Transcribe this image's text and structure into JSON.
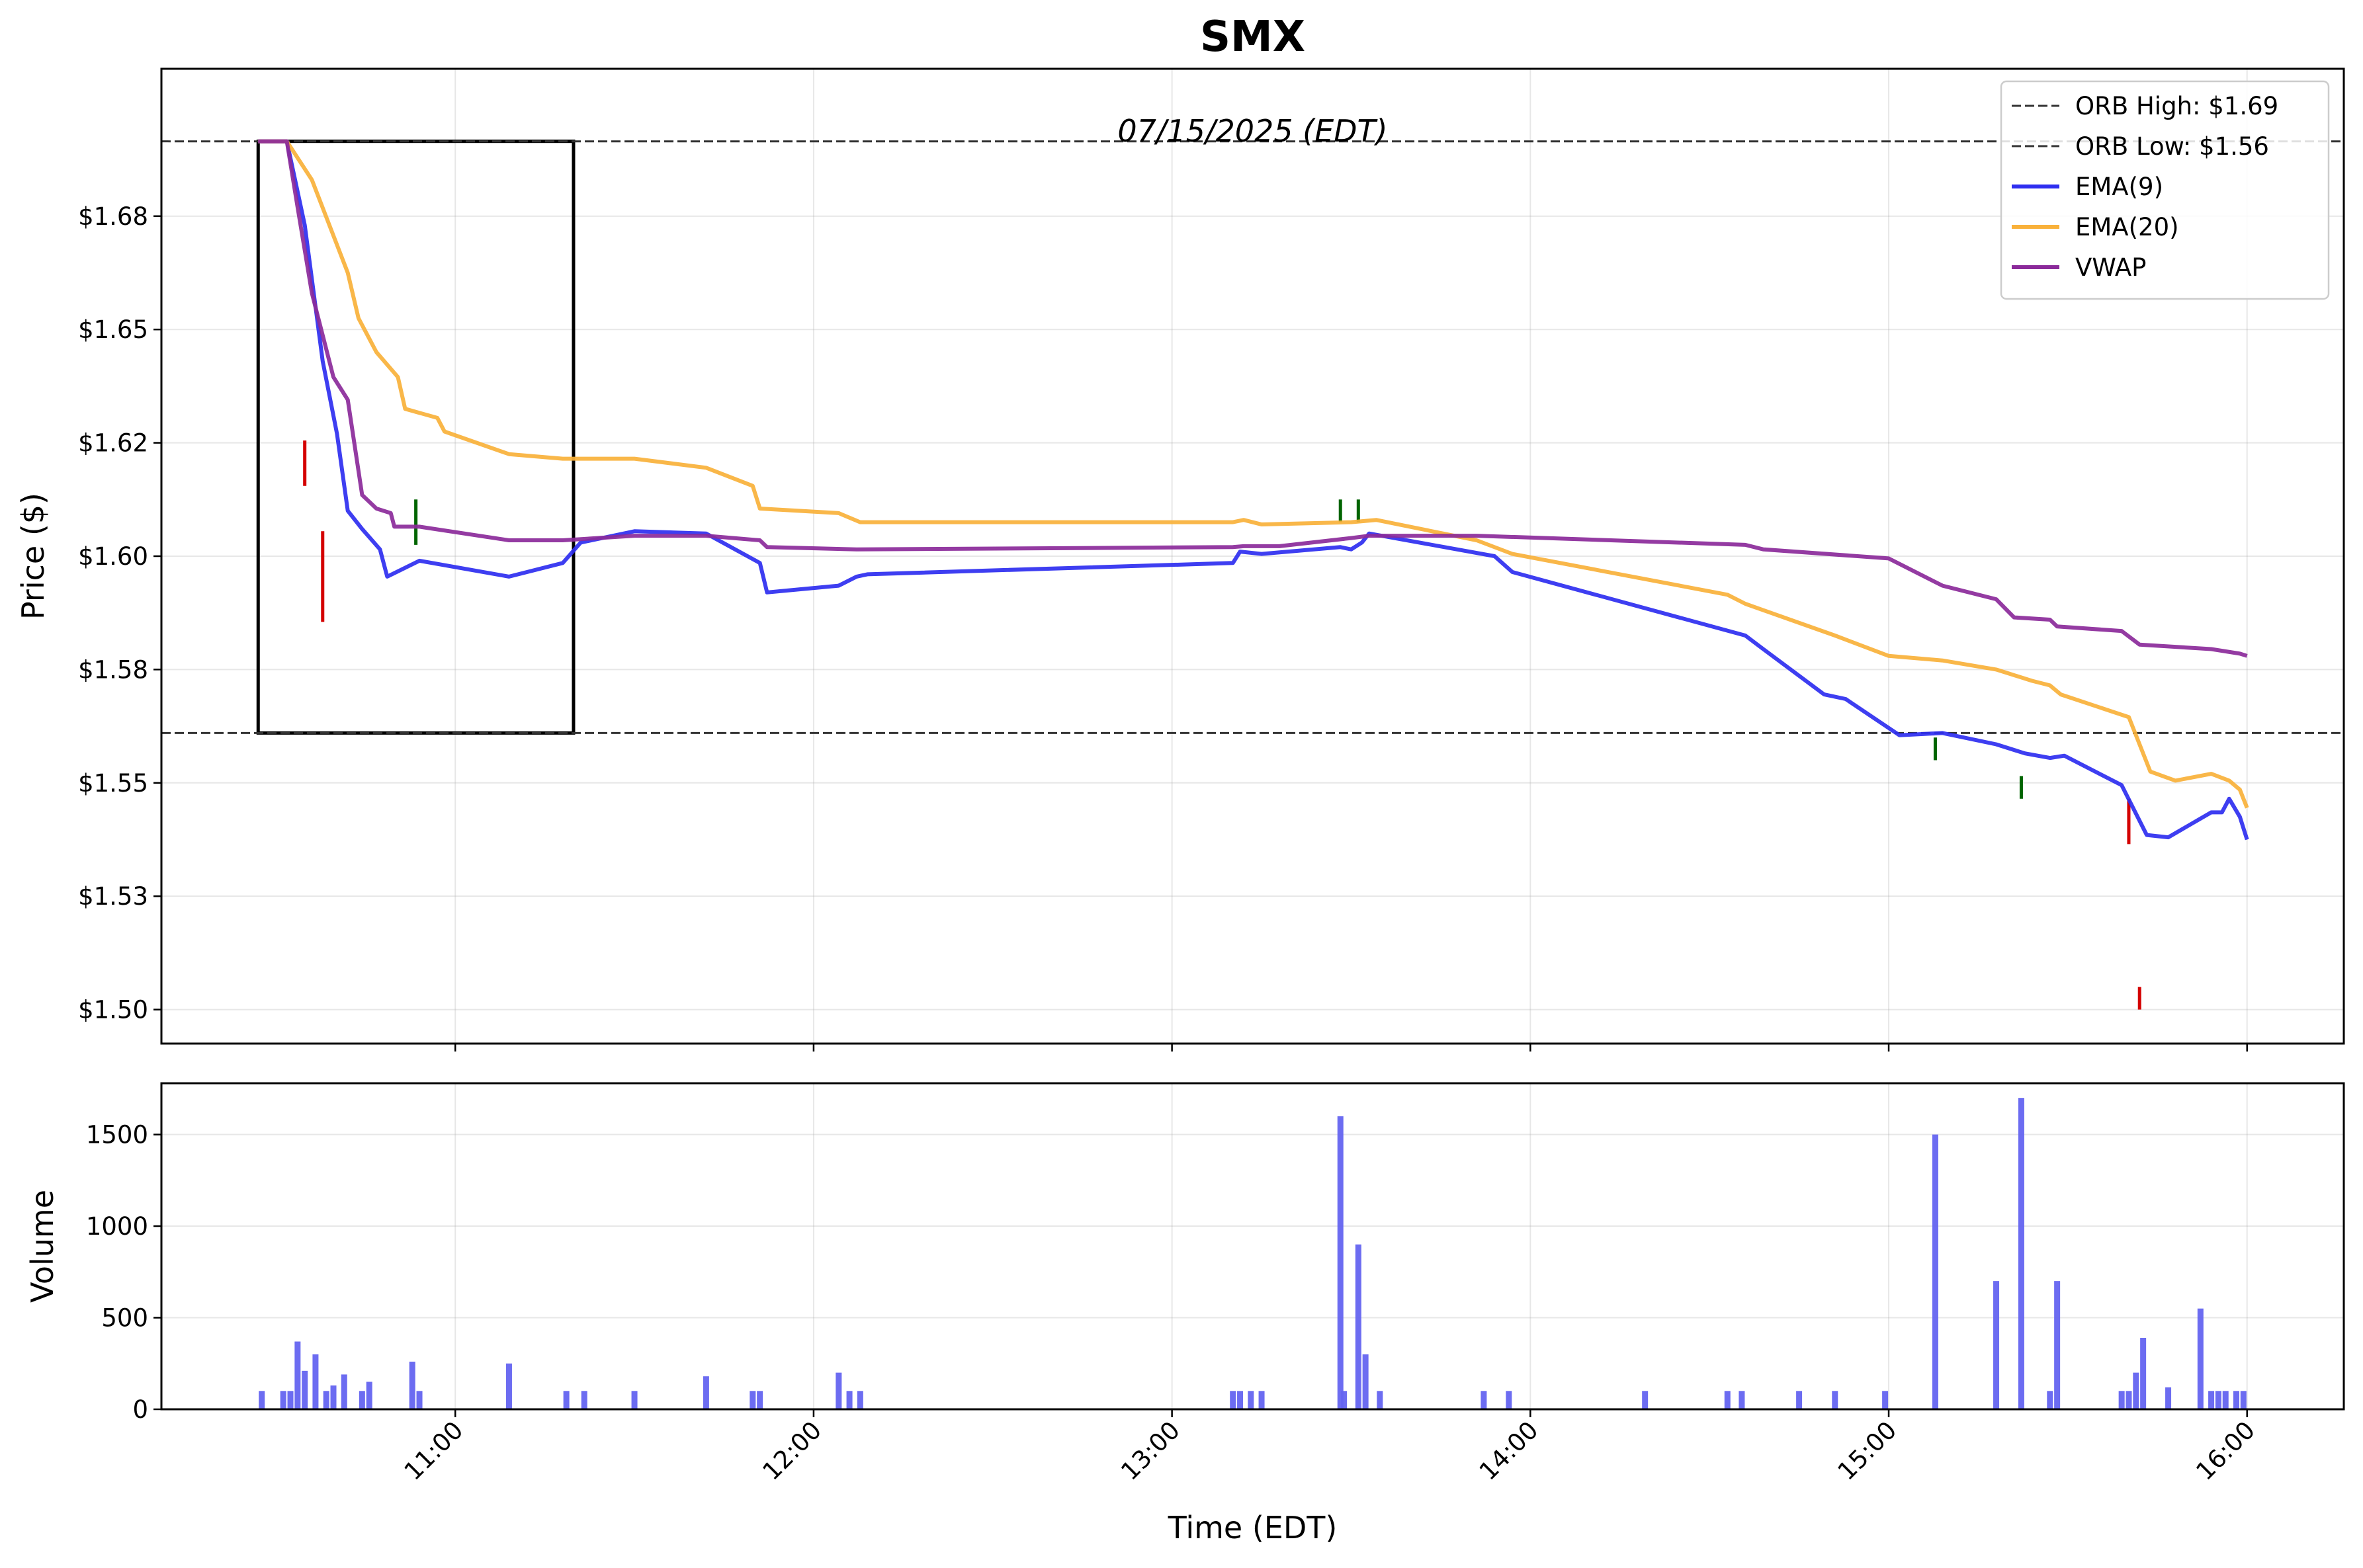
{
  "chart_data": {
    "type": "line",
    "title": "SMX",
    "annotation": "07/15/2025 (EDT)",
    "price_panel": {
      "ylabel": "Price ($)",
      "ylim": [
        1.4925,
        1.7075
      ],
      "yticks": [
        1.5,
        1.525,
        1.55,
        1.575,
        1.6,
        1.625,
        1.65,
        1.675
      ],
      "ytick_labels": [
        "$1.50",
        "$1.53",
        "$1.55",
        "$1.58",
        "$1.60",
        "$1.62",
        "$1.65",
        "$1.68"
      ],
      "orb_high": 1.6915,
      "orb_low": 1.561,
      "orb_box": {
        "x_start": 10.45,
        "x_end": 11.33
      },
      "legend": {
        "placement": "top-right",
        "entries": [
          {
            "label": "ORB High: $1.69",
            "color": "#333333",
            "style": "dashed"
          },
          {
            "label": "ORB Low: $1.56",
            "color": "#333333",
            "style": "dashed"
          },
          {
            "label": "EMA(9)",
            "color": "#2e2ef0",
            "style": "solid"
          },
          {
            "label": "EMA(20)",
            "color": "#f9b13a",
            "style": "solid"
          },
          {
            "label": "VWAP",
            "color": "#8b2a9a",
            "style": "solid"
          }
        ]
      },
      "series": [
        {
          "name": "EMA(9)",
          "color": "#2e2ef0",
          "points": [
            [
              10.45,
              1.6915
            ],
            [
              10.53,
              1.6915
            ],
            [
              10.58,
              1.673
            ],
            [
              10.63,
              1.643
            ],
            [
              10.67,
              1.627
            ],
            [
              10.7,
              1.61
            ],
            [
              10.74,
              1.606
            ],
            [
              10.79,
              1.6015
            ],
            [
              10.81,
              1.5955
            ],
            [
              10.9,
              1.599
            ],
            [
              11.15,
              1.5955
            ],
            [
              11.3,
              1.5985
            ],
            [
              11.35,
              1.603
            ],
            [
              11.5,
              1.6055
            ],
            [
              11.7,
              1.605
            ],
            [
              11.85,
              1.5985
            ],
            [
              11.87,
              1.592
            ],
            [
              12.07,
              1.5935
            ],
            [
              12.12,
              1.5955
            ],
            [
              12.15,
              1.596
            ],
            [
              13.17,
              1.5985
            ],
            [
              13.19,
              1.601
            ],
            [
              13.25,
              1.6005
            ],
            [
              13.47,
              1.602
            ],
            [
              13.5,
              1.6015
            ],
            [
              13.53,
              1.603
            ],
            [
              13.55,
              1.605
            ],
            [
              13.9,
              1.6
            ],
            [
              13.95,
              1.5965
            ],
            [
              14.6,
              1.5825
            ],
            [
              14.65,
              1.5795
            ],
            [
              14.82,
              1.5695
            ],
            [
              14.88,
              1.5685
            ],
            [
              15.03,
              1.5605
            ],
            [
              15.15,
              1.561
            ],
            [
              15.3,
              1.5585
            ],
            [
              15.38,
              1.5565
            ],
            [
              15.45,
              1.5555
            ],
            [
              15.49,
              1.556
            ],
            [
              15.65,
              1.5495
            ],
            [
              15.72,
              1.5385
            ],
            [
              15.78,
              1.538
            ],
            [
              15.9,
              1.5435
            ],
            [
              15.93,
              1.5435
            ],
            [
              15.95,
              1.5465
            ],
            [
              15.98,
              1.5425
            ],
            [
              16.0,
              1.5375
            ]
          ]
        },
        {
          "name": "EMA(20)",
          "color": "#f9b13a",
          "points": [
            [
              10.45,
              1.6915
            ],
            [
              10.53,
              1.6915
            ],
            [
              10.6,
              1.683
            ],
            [
              10.7,
              1.6625
            ],
            [
              10.73,
              1.6525
            ],
            [
              10.78,
              1.645
            ],
            [
              10.84,
              1.6395
            ],
            [
              10.86,
              1.6325
            ],
            [
              10.95,
              1.6305
            ],
            [
              10.97,
              1.6275
            ],
            [
              11.15,
              1.6225
            ],
            [
              11.3,
              1.6215
            ],
            [
              11.5,
              1.6215
            ],
            [
              11.7,
              1.6195
            ],
            [
              11.83,
              1.6155
            ],
            [
              11.85,
              1.6105
            ],
            [
              12.07,
              1.6095
            ],
            [
              12.13,
              1.6075
            ],
            [
              13.17,
              1.6075
            ],
            [
              13.2,
              1.608
            ],
            [
              13.25,
              1.607
            ],
            [
              13.5,
              1.6075
            ],
            [
              13.57,
              1.608
            ],
            [
              13.85,
              1.6035
            ],
            [
              13.95,
              1.6005
            ],
            [
              14.55,
              1.5915
            ],
            [
              14.6,
              1.5895
            ],
            [
              14.85,
              1.5825
            ],
            [
              15.0,
              1.578
            ],
            [
              15.15,
              1.577
            ],
            [
              15.3,
              1.575
            ],
            [
              15.4,
              1.5725
            ],
            [
              15.45,
              1.5715
            ],
            [
              15.48,
              1.5695
            ],
            [
              15.67,
              1.5645
            ],
            [
              15.73,
              1.5525
            ],
            [
              15.8,
              1.5505
            ],
            [
              15.9,
              1.552
            ],
            [
              15.95,
              1.5505
            ],
            [
              15.98,
              1.5485
            ],
            [
              16.0,
              1.5445
            ]
          ]
        },
        {
          "name": "VWAP",
          "color": "#8b2a9a",
          "points": [
            [
              10.45,
              1.6915
            ],
            [
              10.53,
              1.6915
            ],
            [
              10.56,
              1.677
            ],
            [
              10.6,
              1.658
            ],
            [
              10.66,
              1.6395
            ],
            [
              10.7,
              1.6345
            ],
            [
              10.74,
              1.6135
            ],
            [
              10.78,
              1.6105
            ],
            [
              10.82,
              1.6095
            ],
            [
              10.83,
              1.6065
            ],
            [
              10.9,
              1.6065
            ],
            [
              11.15,
              1.6035
            ],
            [
              11.3,
              1.6035
            ],
            [
              11.5,
              1.6045
            ],
            [
              11.7,
              1.6045
            ],
            [
              11.85,
              1.6035
            ],
            [
              11.87,
              1.602
            ],
            [
              12.12,
              1.6015
            ],
            [
              13.17,
              1.602
            ],
            [
              13.2,
              1.6022
            ],
            [
              13.3,
              1.6022
            ],
            [
              13.5,
              1.604
            ],
            [
              13.55,
              1.6045
            ],
            [
              13.85,
              1.6045
            ],
            [
              14.6,
              1.6025
            ],
            [
              14.65,
              1.6015
            ],
            [
              15.0,
              1.5995
            ],
            [
              15.15,
              1.5935
            ],
            [
              15.3,
              1.5905
            ],
            [
              15.35,
              1.5865
            ],
            [
              15.45,
              1.586
            ],
            [
              15.47,
              1.5845
            ],
            [
              15.65,
              1.5835
            ],
            [
              15.7,
              1.5805
            ],
            [
              15.9,
              1.5795
            ],
            [
              15.98,
              1.5785
            ],
            [
              16.0,
              1.578
            ]
          ]
        }
      ],
      "signals": [
        {
          "x": 10.58,
          "y_low": 1.6155,
          "y_high": 1.6255,
          "color": "#d40000"
        },
        {
          "x": 10.63,
          "y_low": 1.5855,
          "y_high": 1.6055,
          "color": "#d40000"
        },
        {
          "x": 10.89,
          "y_low": 1.6025,
          "y_high": 1.6125,
          "color": "#006400"
        },
        {
          "x": 13.47,
          "y_low": 1.6075,
          "y_high": 1.6125,
          "color": "#006400"
        },
        {
          "x": 13.52,
          "y_low": 1.6075,
          "y_high": 1.6125,
          "color": "#006400"
        },
        {
          "x": 15.13,
          "y_low": 1.555,
          "y_high": 1.56,
          "color": "#006400"
        },
        {
          "x": 15.37,
          "y_low": 1.5465,
          "y_high": 1.5515,
          "color": "#006400"
        },
        {
          "x": 15.67,
          "y_low": 1.5365,
          "y_high": 1.5465,
          "color": "#d40000"
        },
        {
          "x": 15.7,
          "y_low": 1.5,
          "y_high": 1.505,
          "color": "#d40000"
        }
      ]
    },
    "volume_panel": {
      "ylabel": "Volume",
      "ylim": [
        0,
        1780
      ],
      "yticks": [
        0,
        500,
        1000,
        1500
      ],
      "ytick_labels": [
        "0",
        "500",
        "1000",
        "1500"
      ],
      "color": "#6464f0",
      "bars": [
        [
          10.46,
          100
        ],
        [
          10.52,
          100
        ],
        [
          10.54,
          100
        ],
        [
          10.56,
          370
        ],
        [
          10.58,
          210
        ],
        [
          10.61,
          300
        ],
        [
          10.64,
          100
        ],
        [
          10.66,
          130
        ],
        [
          10.69,
          190
        ],
        [
          10.74,
          100
        ],
        [
          10.76,
          150
        ],
        [
          10.88,
          260
        ],
        [
          10.9,
          100
        ],
        [
          11.15,
          250
        ],
        [
          11.31,
          100
        ],
        [
          11.36,
          100
        ],
        [
          11.5,
          100
        ],
        [
          11.7,
          180
        ],
        [
          11.83,
          100
        ],
        [
          11.85,
          100
        ],
        [
          12.07,
          200
        ],
        [
          12.1,
          100
        ],
        [
          12.13,
          100
        ],
        [
          13.17,
          100
        ],
        [
          13.19,
          100
        ],
        [
          13.22,
          100
        ],
        [
          13.25,
          100
        ],
        [
          13.47,
          1600
        ],
        [
          13.48,
          100
        ],
        [
          13.52,
          900
        ],
        [
          13.54,
          300
        ],
        [
          13.58,
          100
        ],
        [
          13.87,
          100
        ],
        [
          13.94,
          100
        ],
        [
          14.32,
          100
        ],
        [
          14.55,
          100
        ],
        [
          14.59,
          100
        ],
        [
          14.75,
          100
        ],
        [
          14.85,
          100
        ],
        [
          14.99,
          100
        ],
        [
          15.13,
          1500
        ],
        [
          15.3,
          700
        ],
        [
          15.37,
          1700
        ],
        [
          15.45,
          100
        ],
        [
          15.47,
          700
        ],
        [
          15.65,
          100
        ],
        [
          15.67,
          100
        ],
        [
          15.69,
          200
        ],
        [
          15.71,
          390
        ],
        [
          15.78,
          120
        ],
        [
          15.87,
          550
        ],
        [
          15.9,
          100
        ],
        [
          15.92,
          100
        ],
        [
          15.94,
          100
        ],
        [
          15.97,
          100
        ],
        [
          15.99,
          100
        ]
      ]
    },
    "x_axis": {
      "xlabel": "Time (EDT)",
      "xlim": [
        10.18,
        16.27
      ],
      "xticks": [
        11,
        12,
        13,
        14,
        15,
        16
      ],
      "xtick_labels": [
        "11:00",
        "12:00",
        "13:00",
        "14:00",
        "15:00",
        "16:00"
      ]
    },
    "grid": true
  }
}
